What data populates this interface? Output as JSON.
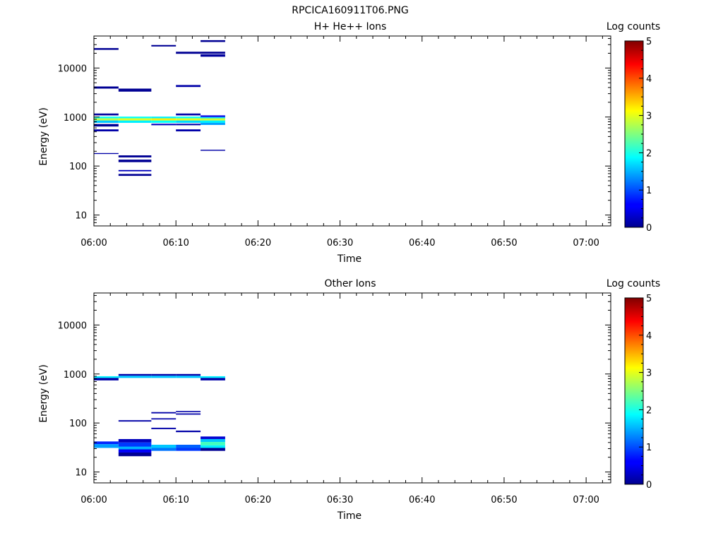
{
  "figure_title": "RPCICA160911T06.PNG",
  "colorscale": "jet",
  "chart_data": [
    {
      "type": "heatmap",
      "title": "H+ He++ Ions",
      "xlabel": "Time",
      "ylabel": "Energy (eV)",
      "x_ticks": [
        "06:00",
        "06:10",
        "06:20",
        "06:30",
        "06:40",
        "06:50",
        "07:00"
      ],
      "xlim": [
        "06:00",
        "07:03"
      ],
      "y_scale": "log",
      "y_ticks": [
        "10",
        "100",
        "1000",
        "10000"
      ],
      "ylim": [
        6,
        45000
      ],
      "colorbar": {
        "label": "Log counts",
        "range": [
          0,
          5
        ],
        "ticks": [
          "0",
          "1",
          "2",
          "3",
          "4",
          "5"
        ]
      },
      "cells": [
        [
          "06:00",
          "06:03",
          23500,
          25500,
          0.1
        ],
        [
          "06:00",
          "06:03",
          3800,
          4200,
          0.1
        ],
        [
          "06:00",
          "06:03",
          1080,
          1180,
          0.15
        ],
        [
          "06:00",
          "06:03",
          940,
          1020,
          1.9
        ],
        [
          "06:00",
          "06:03",
          850,
          940,
          2.8
        ],
        [
          "06:00",
          "06:03",
          760,
          850,
          1.6
        ],
        [
          "06:00",
          "06:03",
          640,
          720,
          0.1
        ],
        [
          "06:00",
          "06:03",
          510,
          560,
          0.2
        ],
        [
          "06:00",
          "06:03",
          176,
          184,
          0.2
        ],
        [
          "06:03",
          "06:07",
          3300,
          3800,
          0.1
        ],
        [
          "06:03",
          "06:07",
          940,
          1020,
          1.9
        ],
        [
          "06:03",
          "06:07",
          850,
          940,
          3.0
        ],
        [
          "06:03",
          "06:07",
          760,
          850,
          1.8
        ],
        [
          "06:03",
          "06:07",
          150,
          165,
          0.1
        ],
        [
          "06:03",
          "06:07",
          120,
          135,
          0.1
        ],
        [
          "06:03",
          "06:07",
          78,
          83,
          0.3
        ],
        [
          "06:03",
          "06:07",
          63,
          69,
          0.1
        ],
        [
          "06:07",
          "06:10",
          27500,
          29500,
          0.1
        ],
        [
          "06:07",
          "06:10",
          940,
          1020,
          1.8
        ],
        [
          "06:07",
          "06:10",
          850,
          940,
          3.2
        ],
        [
          "06:07",
          "06:10",
          760,
          850,
          1.9
        ],
        [
          "06:07",
          "06:10",
          680,
          730,
          0.3
        ],
        [
          "06:10",
          "06:13",
          19500,
          21500,
          0.1
        ],
        [
          "06:10",
          "06:13",
          4100,
          4500,
          0.2
        ],
        [
          "06:10",
          "06:13",
          1080,
          1180,
          0.2
        ],
        [
          "06:10",
          "06:13",
          940,
          1020,
          1.9
        ],
        [
          "06:10",
          "06:13",
          850,
          940,
          3.0
        ],
        [
          "06:10",
          "06:13",
          760,
          850,
          1.7
        ],
        [
          "06:10",
          "06:13",
          680,
          730,
          0.2
        ],
        [
          "06:10",
          "06:13",
          510,
          560,
          0.2
        ],
        [
          "06:13",
          "06:16",
          34000,
          37000,
          0.1
        ],
        [
          "06:13",
          "06:16",
          19500,
          21500,
          0.1
        ],
        [
          "06:13",
          "06:16",
          17000,
          19000,
          0.15
        ],
        [
          "06:13",
          "06:16",
          1000,
          1080,
          0.5
        ],
        [
          "06:13",
          "06:16",
          940,
          1000,
          1.7
        ],
        [
          "06:13",
          "06:16",
          850,
          940,
          2.9
        ],
        [
          "06:13",
          "06:16",
          760,
          850,
          1.8
        ],
        [
          "06:13",
          "06:16",
          690,
          760,
          1.4
        ],
        [
          "06:13",
          "06:16",
          205,
          215,
          0.2
        ]
      ]
    },
    {
      "type": "heatmap",
      "title": "Other Ions",
      "xlabel": "Time",
      "ylabel": "Energy (eV)",
      "x_ticks": [
        "06:00",
        "06:10",
        "06:20",
        "06:30",
        "06:40",
        "06:50",
        "07:00"
      ],
      "xlim": [
        "06:00",
        "07:03"
      ],
      "y_scale": "log",
      "y_ticks": [
        "10",
        "100",
        "1000",
        "10000"
      ],
      "ylim": [
        6,
        45000
      ],
      "colorbar": {
        "label": "Log counts",
        "range": [
          0,
          5
        ],
        "ticks": [
          "0",
          "1",
          "2",
          "3",
          "4",
          "5"
        ]
      },
      "cells": [
        [
          "06:00",
          "06:03",
          830,
          900,
          1.8
        ],
        [
          "06:00",
          "06:03",
          740,
          830,
          0.2
        ],
        [
          "06:00",
          "06:03",
          37,
          42,
          0.8
        ],
        [
          "06:00",
          "06:03",
          31,
          37,
          1.4
        ],
        [
          "06:03",
          "06:07",
          920,
          1000,
          0.2
        ],
        [
          "06:03",
          "06:07",
          830,
          920,
          1.6
        ],
        [
          "06:03",
          "06:07",
          107,
          114,
          0.2
        ],
        [
          "06:03",
          "06:07",
          40,
          47,
          0.3
        ],
        [
          "06:03",
          "06:07",
          32,
          40,
          0.9
        ],
        [
          "06:03",
          "06:07",
          29,
          33,
          1.5
        ],
        [
          "06:03",
          "06:07",
          25,
          29,
          0.6
        ],
        [
          "06:03",
          "06:07",
          21,
          25,
          0.1
        ],
        [
          "06:07",
          "06:10",
          920,
          1000,
          0.2
        ],
        [
          "06:07",
          "06:10",
          830,
          920,
          1.6
        ],
        [
          "06:07",
          "06:10",
          157,
          167,
          0.2
        ],
        [
          "06:07",
          "06:10",
          118,
          125,
          0.2
        ],
        [
          "06:07",
          "06:10",
          75,
          80,
          0.2
        ],
        [
          "06:07",
          "06:10",
          31,
          36,
          1.6
        ],
        [
          "06:07",
          "06:10",
          27,
          31,
          1.2
        ],
        [
          "06:10",
          "06:13",
          920,
          1000,
          0.2
        ],
        [
          "06:10",
          "06:13",
          830,
          920,
          1.6
        ],
        [
          "06:10",
          "06:13",
          167,
          176,
          0.2
        ],
        [
          "06:10",
          "06:13",
          148,
          157,
          0.2
        ],
        [
          "06:10",
          "06:13",
          65,
          70,
          0.2
        ],
        [
          "06:10",
          "06:13",
          31,
          36,
          1.1
        ],
        [
          "06:10",
          "06:13",
          27,
          31,
          0.9
        ],
        [
          "06:13",
          "06:16",
          830,
          900,
          1.8
        ],
        [
          "06:13",
          "06:16",
          740,
          830,
          0.2
        ],
        [
          "06:13",
          "06:16",
          47,
          53,
          0.4
        ],
        [
          "06:13",
          "06:16",
          41,
          47,
          1.6
        ],
        [
          "06:13",
          "06:16",
          35,
          41,
          2.2
        ],
        [
          "06:13",
          "06:16",
          31,
          35,
          1.8
        ],
        [
          "06:13",
          "06:16",
          27,
          31,
          0.1
        ]
      ]
    }
  ]
}
